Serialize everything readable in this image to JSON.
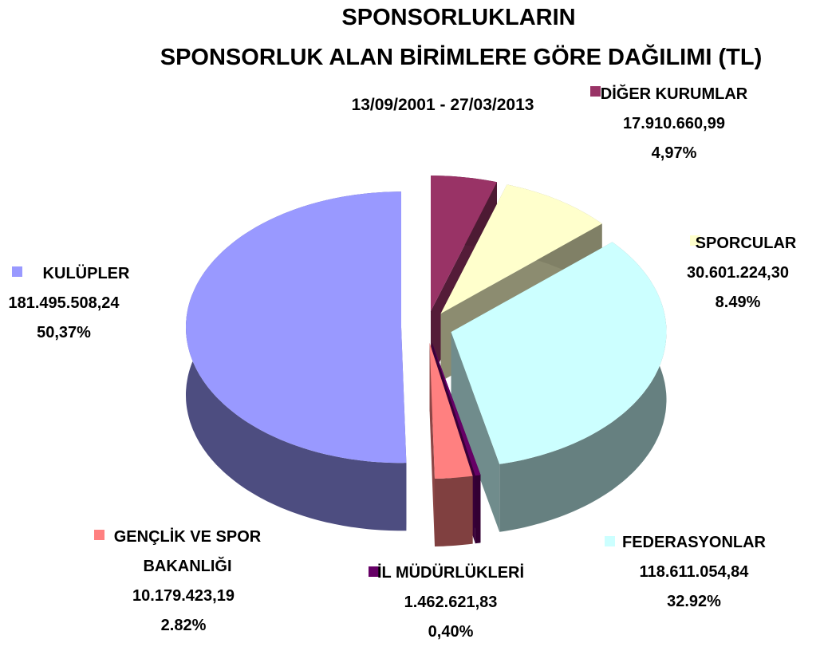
{
  "chart_data": {
    "type": "pie3d",
    "title": [
      "SPONSORLUKLARIN",
      "SPONSORLUK  ALAN BİRİMLERE GÖRE DAĞILIMI (TL)"
    ],
    "subtitle": "13/09/2001 - 27/03/2013",
    "categories": [
      "DİĞER KURUMLAR",
      "SPORCULAR",
      "FEDERASYONLAR",
      "İL MÜDÜRLÜKLERİ",
      "GENÇLİK VE SPOR BAKANLIĞI",
      "KULÜPLER"
    ],
    "values": [
      17910660.99,
      30601224.3,
      118611054.84,
      1462621.83,
      10179423.19,
      181495508.24
    ],
    "value_labels": [
      "17.910.660,99",
      "30.601.224,30",
      "118.611.054,84",
      "1.462.621,83",
      "10.179.423,19",
      "181.495.508,24"
    ],
    "percent_labels": [
      "4,97%",
      "8.49%",
      "32.92%",
      "0,40%",
      "2.82%",
      "50,37%"
    ],
    "colors": [
      "#993366",
      "#ffffcc",
      "#ccffff",
      "#660066",
      "#ff8080",
      "#9999ff"
    ]
  }
}
